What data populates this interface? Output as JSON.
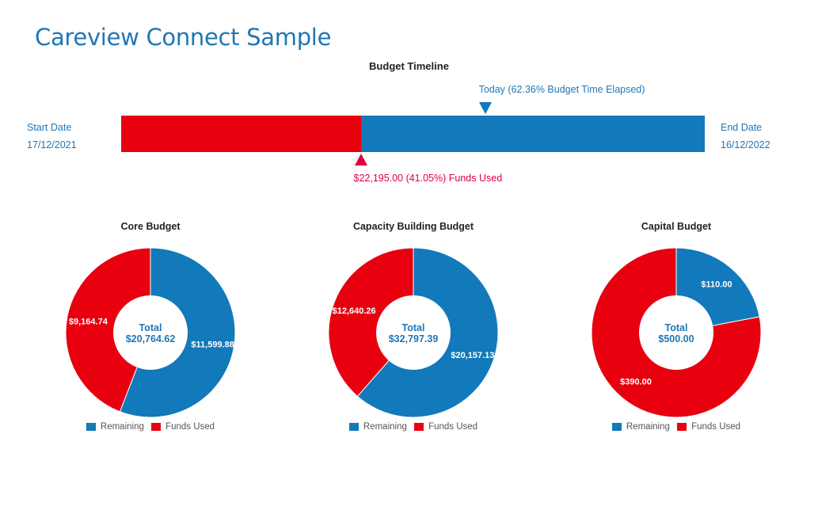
{
  "page": {
    "title": "Careview Connect Sample"
  },
  "timeline": {
    "title": "Budget Timeline",
    "start_label": "Start Date",
    "start_date": "17/12/2021",
    "end_label": "End Date",
    "end_date": "16/12/2022",
    "today_label": "Today (62.36% Budget Time Elapsed)",
    "time_elapsed_pct": 62.36,
    "funds_label": "$22,195.00 (41.05%) Funds Used",
    "funds_used_pct": 41.05
  },
  "colors": {
    "remaining": "#1279ba",
    "used": "#e8000f",
    "accent": "#1f77b4",
    "funds_marker": "#e0003f"
  },
  "legend": {
    "remaining": "Remaining",
    "used": "Funds Used"
  },
  "chart_data": [
    {
      "type": "pie",
      "title": "Core Budget",
      "categories": [
        "Remaining",
        "Funds Used"
      ],
      "values": [
        11599.88,
        9164.74
      ],
      "value_labels": [
        "$11,599.88",
        "$9,164.74"
      ],
      "center_label": "Total",
      "total_label": "$20,764.62"
    },
    {
      "type": "pie",
      "title": "Capacity Building Budget",
      "categories": [
        "Remaining",
        "Funds Used"
      ],
      "values": [
        20157.13,
        12640.26
      ],
      "value_labels": [
        "$20,157.13",
        "$12,640.26"
      ],
      "center_label": "Total",
      "total_label": "$32,797.39"
    },
    {
      "type": "pie",
      "title": "Capital Budget",
      "categories": [
        "Remaining",
        "Funds Used"
      ],
      "values": [
        110.0,
        390.0
      ],
      "value_labels": [
        "$110.00",
        "$390.00"
      ],
      "center_label": "Total",
      "total_label": "$500.00"
    }
  ]
}
